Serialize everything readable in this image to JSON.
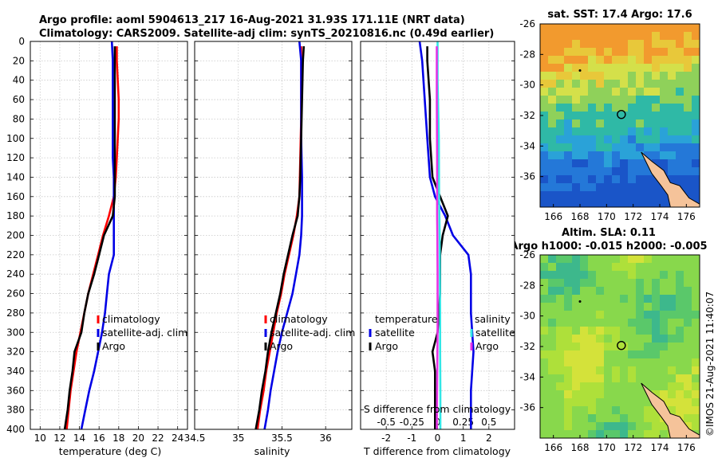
{
  "header": {
    "line1": "Argo profile: aoml 5904613_217 16-Aug-2021 31.93S 171.11E (NRT data)",
    "line2": "Climatology: CARS2009. Satellite-adj clim: synTS_20210816.nc (0.49d earlier)"
  },
  "colors": {
    "climatology": "#ff0000",
    "satellite": "#0000e6",
    "argo": "#000000",
    "sal_satellite": "#33e6e6",
    "sal_argo": "#e633e6",
    "land": "#f5c39a"
  },
  "footer": {
    "credit": "©IMOS 21-Aug-2021 11:40:07"
  },
  "chart_data": [
    {
      "type": "line",
      "name": "temperature",
      "xlabel": "temperature (deg C)",
      "ylabel": "",
      "xlim": [
        9,
        25
      ],
      "ylim": [
        0,
        400
      ],
      "xticks": [
        10,
        12,
        14,
        16,
        18,
        20,
        22,
        24
      ],
      "yticks": [
        0,
        20,
        40,
        60,
        80,
        100,
        120,
        140,
        160,
        180,
        200,
        220,
        240,
        260,
        280,
        300,
        320,
        340,
        360,
        380,
        400
      ],
      "legend": [
        "climatology",
        "satellite-adj. clim",
        "Argo"
      ],
      "series": [
        {
          "name": "climatology",
          "color": "#ff0000",
          "points": [
            [
              17.8,
              5
            ],
            [
              17.8,
              20
            ],
            [
              17.9,
              40
            ],
            [
              18.0,
              60
            ],
            [
              18.0,
              80
            ],
            [
              17.9,
              100
            ],
            [
              17.8,
              120
            ],
            [
              17.7,
              140
            ],
            [
              17.5,
              160
            ],
            [
              17.0,
              180
            ],
            [
              16.4,
              200
            ],
            [
              15.9,
              220
            ],
            [
              15.4,
              240
            ],
            [
              14.9,
              260
            ],
            [
              14.5,
              280
            ],
            [
              14.1,
              300
            ],
            [
              13.7,
              320
            ],
            [
              13.4,
              340
            ],
            [
              13.1,
              360
            ],
            [
              12.9,
              380
            ],
            [
              12.7,
              400
            ]
          ]
        },
        {
          "name": "satellite-adj. clim",
          "color": "#0000e6",
          "points": [
            [
              17.3,
              0
            ],
            [
              17.4,
              20
            ],
            [
              17.4,
              40
            ],
            [
              17.4,
              60
            ],
            [
              17.4,
              80
            ],
            [
              17.4,
              100
            ],
            [
              17.4,
              120
            ],
            [
              17.5,
              140
            ],
            [
              17.5,
              160
            ],
            [
              17.5,
              180
            ],
            [
              17.5,
              200
            ],
            [
              17.5,
              220
            ],
            [
              17.0,
              240
            ],
            [
              16.8,
              260
            ],
            [
              16.6,
              280
            ],
            [
              16.3,
              300
            ],
            [
              15.9,
              320
            ],
            [
              15.5,
              340
            ],
            [
              15.0,
              360
            ],
            [
              14.6,
              380
            ],
            [
              14.2,
              400
            ]
          ]
        },
        {
          "name": "Argo",
          "color": "#000000",
          "points": [
            [
              17.6,
              5
            ],
            [
              17.6,
              20
            ],
            [
              17.6,
              40
            ],
            [
              17.6,
              60
            ],
            [
              17.6,
              80
            ],
            [
              17.6,
              100
            ],
            [
              17.6,
              120
            ],
            [
              17.6,
              140
            ],
            [
              17.6,
              160
            ],
            [
              17.4,
              180
            ],
            [
              16.5,
              200
            ],
            [
              16.0,
              220
            ],
            [
              15.5,
              240
            ],
            [
              14.9,
              260
            ],
            [
              14.5,
              280
            ],
            [
              14.2,
              300
            ],
            [
              13.5,
              320
            ],
            [
              13.3,
              340
            ],
            [
              13.0,
              360
            ],
            [
              12.8,
              380
            ],
            [
              12.5,
              400
            ]
          ]
        }
      ]
    },
    {
      "type": "line",
      "name": "salinity",
      "xlabel": "salinity",
      "xlim": [
        34.5,
        36.3
      ],
      "ylim": [
        0,
        400
      ],
      "xticks": [
        34.5,
        35,
        35.5,
        36
      ],
      "xticklabels": [
        "34.5",
        "35",
        "35.5",
        "36"
      ],
      "legend": [
        "climatology",
        "satellite-adj. clim",
        "Argo"
      ],
      "series": [
        {
          "name": "climatology",
          "color": "#ff0000",
          "points": [
            [
              35.72,
              5
            ],
            [
              35.72,
              40
            ],
            [
              35.72,
              80
            ],
            [
              35.71,
              120
            ],
            [
              35.7,
              160
            ],
            [
              35.67,
              180
            ],
            [
              35.63,
              200
            ],
            [
              35.58,
              220
            ],
            [
              35.53,
              240
            ],
            [
              35.49,
              260
            ],
            [
              35.44,
              280
            ],
            [
              35.4,
              300
            ],
            [
              35.36,
              320
            ],
            [
              35.32,
              340
            ],
            [
              35.29,
              360
            ],
            [
              35.25,
              380
            ],
            [
              35.22,
              400
            ]
          ]
        },
        {
          "name": "satellite-adj. clim",
          "color": "#0000e6",
          "points": [
            [
              35.7,
              0
            ],
            [
              35.72,
              20
            ],
            [
              35.72,
              60
            ],
            [
              35.72,
              100
            ],
            [
              35.73,
              140
            ],
            [
              35.73,
              180
            ],
            [
              35.72,
              200
            ],
            [
              35.7,
              220
            ],
            [
              35.66,
              240
            ],
            [
              35.62,
              260
            ],
            [
              35.56,
              280
            ],
            [
              35.5,
              300
            ],
            [
              35.45,
              320
            ],
            [
              35.41,
              340
            ],
            [
              35.37,
              360
            ],
            [
              35.34,
              380
            ],
            [
              35.3,
              400
            ]
          ]
        },
        {
          "name": "Argo",
          "color": "#000000",
          "points": [
            [
              35.75,
              5
            ],
            [
              35.74,
              20
            ],
            [
              35.73,
              60
            ],
            [
              35.72,
              100
            ],
            [
              35.71,
              140
            ],
            [
              35.7,
              160
            ],
            [
              35.68,
              180
            ],
            [
              35.62,
              200
            ],
            [
              35.57,
              220
            ],
            [
              35.52,
              240
            ],
            [
              35.48,
              260
            ],
            [
              35.43,
              280
            ],
            [
              35.38,
              300
            ],
            [
              35.34,
              320
            ],
            [
              35.31,
              340
            ],
            [
              35.27,
              360
            ],
            [
              35.24,
              380
            ],
            [
              35.2,
              400
            ]
          ]
        }
      ]
    },
    {
      "type": "line",
      "name": "difference",
      "xlabel": "T difference from climatology",
      "top_axis_label": "S difference from climatology",
      "xlim": [
        -3,
        3
      ],
      "ylim": [
        0,
        400
      ],
      "xticks": [
        -2,
        -1,
        0,
        1,
        2
      ],
      "top_ticks": [
        -0.5,
        -0.25,
        0,
        0.25,
        0.5
      ],
      "top_ticklabels": [
        "-0.5",
        "-0.25",
        "0",
        "0.25",
        "0.5"
      ],
      "legend_left": [
        "temperature",
        "satellite",
        "Argo"
      ],
      "legend_right": [
        "salinity",
        "satellite",
        "Argo"
      ],
      "series": [
        {
          "name": "T satellite",
          "color": "#0000e6",
          "points": [
            [
              -0.7,
              0
            ],
            [
              -0.6,
              20
            ],
            [
              -0.5,
              60
            ],
            [
              -0.4,
              100
            ],
            [
              -0.3,
              140
            ],
            [
              -0.1,
              160
            ],
            [
              0.3,
              180
            ],
            [
              0.6,
              200
            ],
            [
              1.2,
              220
            ],
            [
              1.3,
              240
            ],
            [
              1.3,
              280
            ],
            [
              1.4,
              320
            ],
            [
              1.3,
              360
            ],
            [
              1.3,
              400
            ]
          ]
        },
        {
          "name": "T Argo",
          "color": "#000000",
          "points": [
            [
              -0.4,
              5
            ],
            [
              -0.4,
              20
            ],
            [
              -0.3,
              60
            ],
            [
              -0.3,
              100
            ],
            [
              -0.2,
              140
            ],
            [
              0.1,
              160
            ],
            [
              0.4,
              180
            ],
            [
              0.2,
              200
            ],
            [
              0.1,
              220
            ],
            [
              0.1,
              260
            ],
            [
              0.0,
              300
            ],
            [
              -0.2,
              320
            ],
            [
              -0.1,
              340
            ],
            [
              -0.1,
              400
            ]
          ]
        },
        {
          "name": "S satellite",
          "color": "#33e6e6",
          "points": [
            [
              0.0,
              0
            ],
            [
              0.0,
              40
            ],
            [
              0.05,
              100
            ],
            [
              0.06,
              160
            ],
            [
              0.08,
              200
            ],
            [
              0.09,
              240
            ],
            [
              0.1,
              280
            ],
            [
              0.1,
              320
            ],
            [
              0.11,
              360
            ],
            [
              0.11,
              400
            ]
          ]
        },
        {
          "name": "S Argo",
          "color": "#e633e6",
          "points": [
            [
              -0.03,
              5
            ],
            [
              -0.03,
              60
            ],
            [
              -0.02,
              120
            ],
            [
              -0.02,
              180
            ],
            [
              -0.01,
              200
            ],
            [
              0.0,
              240
            ],
            [
              0.0,
              300
            ],
            [
              -0.02,
              360
            ],
            [
              -0.03,
              400
            ]
          ]
        }
      ]
    },
    {
      "type": "heatmap",
      "name": "sst-map",
      "title": "sat. SST: 17.4 Argo: 17.6",
      "xticks": [
        166,
        168,
        170,
        172,
        174,
        176
      ],
      "yticks": [
        -26,
        -28,
        -30,
        -32,
        -34,
        -36
      ],
      "xlim": [
        165,
        177
      ],
      "ylim": [
        -38,
        -26
      ],
      "argo_location": [
        171.11,
        -31.93
      ]
    },
    {
      "type": "heatmap",
      "name": "sla-map",
      "title": "Altim. SLA: 0.11",
      "subtitle": "Argo h1000: -0.015 h2000: -0.005",
      "xticks": [
        166,
        168,
        170,
        172,
        174,
        176
      ],
      "yticks": [
        -26,
        -28,
        -30,
        -32,
        -34,
        -36
      ],
      "xlim": [
        165,
        177
      ],
      "ylim": [
        -38,
        -26
      ],
      "argo_location": [
        171.11,
        -31.93
      ]
    }
  ]
}
